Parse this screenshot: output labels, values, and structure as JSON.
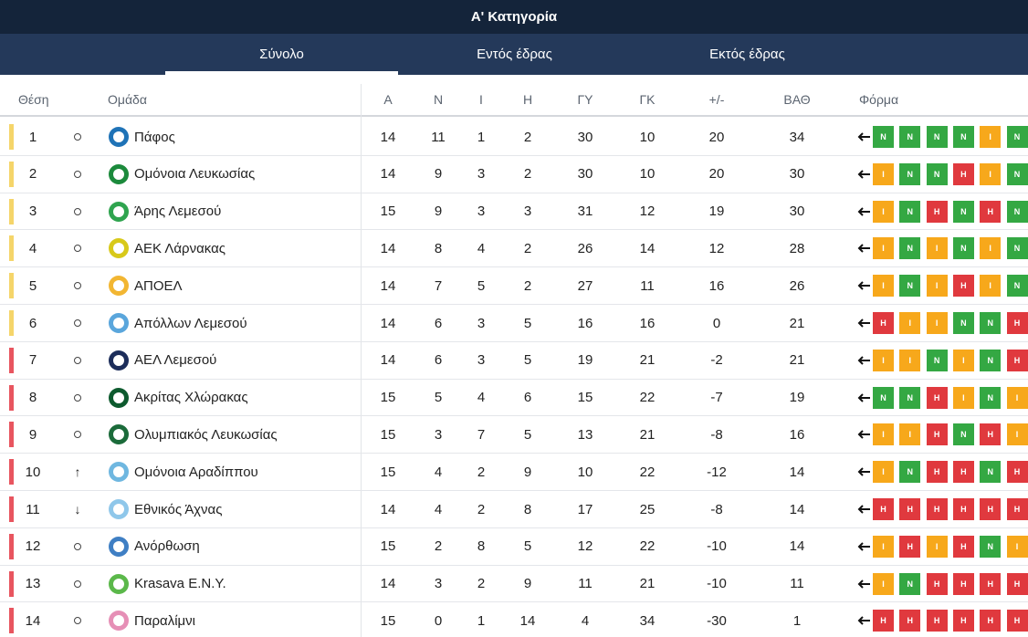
{
  "title": "Α' Κατηγορία",
  "tabs": [
    {
      "label": "Σύνολο",
      "active": true
    },
    {
      "label": "Εντός έδρας",
      "active": false
    },
    {
      "label": "Εκτός έδρας",
      "active": false
    }
  ],
  "headers": {
    "position": "Θέση",
    "team": "Ομάδα",
    "played": "Α",
    "wins": "Ν",
    "draws": "Ι",
    "losses": "Η",
    "goals_for": "ΓΥ",
    "goals_against": "ΓΚ",
    "diff": "+/-",
    "points": "ΒΑΘ",
    "form": "Φόρμα"
  },
  "colors": {
    "zone_top": "#f5d56a",
    "zone_rest": "#e8555f",
    "win": "#34a843",
    "draw": "#f7a81b",
    "loss": "#e0393e"
  },
  "rows": [
    {
      "pos": "1",
      "trend": "same",
      "team": "Πάφος",
      "logo": "#1f73b7",
      "zone": "top",
      "p": "14",
      "w": "11",
      "d": "1",
      "l": "2",
      "gf": "30",
      "ga": "10",
      "diff": "20",
      "pts": "34",
      "form": [
        "Ν",
        "Ν",
        "Ν",
        "Ν",
        "Ι",
        "Ν"
      ]
    },
    {
      "pos": "2",
      "trend": "same",
      "team": "Ομόνοια Λευκωσίας",
      "logo": "#1c8a3c",
      "zone": "top",
      "p": "14",
      "w": "9",
      "d": "3",
      "l": "2",
      "gf": "30",
      "ga": "10",
      "diff": "20",
      "pts": "30",
      "form": [
        "Ι",
        "Ν",
        "Ν",
        "Η",
        "Ι",
        "Ν"
      ]
    },
    {
      "pos": "3",
      "trend": "same",
      "team": "Άρης Λεμεσού",
      "logo": "#2fa44f",
      "zone": "top",
      "p": "15",
      "w": "9",
      "d": "3",
      "l": "3",
      "gf": "31",
      "ga": "12",
      "diff": "19",
      "pts": "30",
      "form": [
        "Ι",
        "Ν",
        "Η",
        "Ν",
        "Η",
        "Ν"
      ]
    },
    {
      "pos": "4",
      "trend": "same",
      "team": "ΑΕΚ Λάρνακας",
      "logo": "#d8c91a",
      "zone": "top",
      "p": "14",
      "w": "8",
      "d": "4",
      "l": "2",
      "gf": "26",
      "ga": "14",
      "diff": "12",
      "pts": "28",
      "form": [
        "Ι",
        "Ν",
        "Ι",
        "Ν",
        "Ι",
        "Ν"
      ]
    },
    {
      "pos": "5",
      "trend": "same",
      "team": "ΑΠΟΕΛ",
      "logo": "#f2b632",
      "zone": "top",
      "p": "14",
      "w": "7",
      "d": "5",
      "l": "2",
      "gf": "27",
      "ga": "11",
      "diff": "16",
      "pts": "26",
      "form": [
        "Ι",
        "Ν",
        "Ι",
        "Η",
        "Ι",
        "Ν"
      ]
    },
    {
      "pos": "6",
      "trend": "same",
      "team": "Απόλλων Λεμεσού",
      "logo": "#5aa6dc",
      "zone": "top",
      "p": "14",
      "w": "6",
      "d": "3",
      "l": "5",
      "gf": "16",
      "ga": "16",
      "diff": "0",
      "pts": "21",
      "form": [
        "Η",
        "Ι",
        "Ι",
        "Ν",
        "Ν",
        "Η"
      ]
    },
    {
      "pos": "7",
      "trend": "same",
      "team": "ΑΕΛ Λεμεσού",
      "logo": "#1c2d5a",
      "zone": "rest",
      "p": "14",
      "w": "6",
      "d": "3",
      "l": "5",
      "gf": "19",
      "ga": "21",
      "diff": "-2",
      "pts": "21",
      "form": [
        "Ι",
        "Ι",
        "Ν",
        "Ι",
        "Ν",
        "Η"
      ]
    },
    {
      "pos": "8",
      "trend": "same",
      "team": "Ακρίτας Χλώρακας",
      "logo": "#0d5a2e",
      "zone": "rest",
      "p": "15",
      "w": "5",
      "d": "4",
      "l": "6",
      "gf": "15",
      "ga": "22",
      "diff": "-7",
      "pts": "19",
      "form": [
        "Ν",
        "Ν",
        "Η",
        "Ι",
        "Ν",
        "Ι"
      ]
    },
    {
      "pos": "9",
      "trend": "same",
      "team": "Ολυμπιακός Λευκωσίας",
      "logo": "#1b6b3a",
      "zone": "rest",
      "p": "15",
      "w": "3",
      "d": "7",
      "l": "5",
      "gf": "13",
      "ga": "21",
      "diff": "-8",
      "pts": "16",
      "form": [
        "Ι",
        "Ι",
        "Η",
        "Ν",
        "Η",
        "Ι"
      ]
    },
    {
      "pos": "10",
      "trend": "up",
      "team": "Ομόνοια Αραδίππου",
      "logo": "#6fb7e0",
      "zone": "rest",
      "p": "15",
      "w": "4",
      "d": "2",
      "l": "9",
      "gf": "10",
      "ga": "22",
      "diff": "-12",
      "pts": "14",
      "form": [
        "Ι",
        "Ν",
        "Η",
        "Η",
        "Ν",
        "Η"
      ]
    },
    {
      "pos": "11",
      "trend": "down",
      "team": "Εθνικός Άχνας",
      "logo": "#8fc7ea",
      "zone": "rest",
      "p": "14",
      "w": "4",
      "d": "2",
      "l": "8",
      "gf": "17",
      "ga": "25",
      "diff": "-8",
      "pts": "14",
      "form": [
        "Η",
        "Η",
        "Η",
        "Η",
        "Η",
        "Η"
      ]
    },
    {
      "pos": "12",
      "trend": "same",
      "team": "Ανόρθωση",
      "logo": "#3f7fc4",
      "zone": "rest",
      "p": "15",
      "w": "2",
      "d": "8",
      "l": "5",
      "gf": "12",
      "ga": "22",
      "diff": "-10",
      "pts": "14",
      "form": [
        "Ι",
        "Η",
        "Ι",
        "Η",
        "Ν",
        "Ι"
      ]
    },
    {
      "pos": "13",
      "trend": "same",
      "team": "Krasava E.N.Y.",
      "logo": "#5bb84a",
      "zone": "rest",
      "p": "14",
      "w": "3",
      "d": "2",
      "l": "9",
      "gf": "11",
      "ga": "21",
      "diff": "-10",
      "pts": "11",
      "form": [
        "Ι",
        "Ν",
        "Η",
        "Η",
        "Η",
        "Η"
      ]
    },
    {
      "pos": "14",
      "trend": "same",
      "team": "Παραλίμνι",
      "logo": "#e68fb6",
      "zone": "rest",
      "p": "15",
      "w": "0",
      "d": "1",
      "l": "14",
      "gf": "4",
      "ga": "34",
      "diff": "-30",
      "pts": "1",
      "form": [
        "Η",
        "Η",
        "Η",
        "Η",
        "Η",
        "Η"
      ]
    }
  ]
}
